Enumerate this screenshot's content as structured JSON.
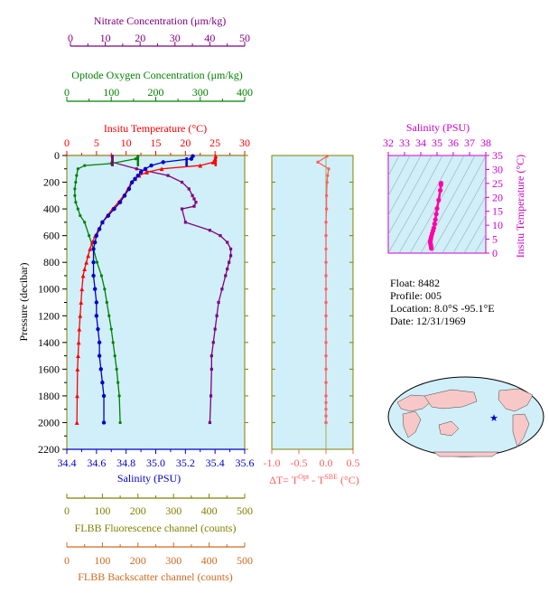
{
  "colors": {
    "nitrate": "#800080",
    "oxygen": "#008000",
    "temperature": "#ff0000",
    "salinity": "#0000cc",
    "pressure": "#000000",
    "fluorescence": "#808000",
    "backscatter": "#d2691e",
    "delta_t": "#ff6060",
    "ts_curve": "#ff00aa",
    "plot_bg": "#d0eff8"
  },
  "axes": {
    "nitrate": {
      "title": "Nitrate Concentration (μm/kg)",
      "ticks": [
        "0",
        "10",
        "20",
        "30",
        "40",
        "50"
      ],
      "range": [
        0,
        50
      ]
    },
    "oxygen": {
      "title": "Optode Oxygen Concentration (μm/kg)",
      "ticks": [
        "0",
        "100",
        "200",
        "300",
        "400"
      ],
      "range": [
        0,
        400
      ]
    },
    "temperature": {
      "title": "Insitu Temperature (°C)",
      "ticks": [
        "0",
        "5",
        "10",
        "15",
        "20",
        "25",
        "30"
      ],
      "range": [
        0,
        30
      ]
    },
    "pressure": {
      "title": "Pressure (decibar)",
      "ticks": [
        "0",
        "200",
        "400",
        "600",
        "800",
        "1000",
        "1200",
        "1400",
        "1600",
        "1800",
        "2000",
        "2200"
      ],
      "range": [
        0,
        2200
      ]
    },
    "salinity": {
      "title": "Salinity (PSU)",
      "ticks": [
        "34.4",
        "34.6",
        "34.8",
        "35.0",
        "35.2",
        "35.4",
        "35.6"
      ],
      "range": [
        34.4,
        35.6
      ]
    },
    "fluorescence": {
      "title": "FLBB Fluorescence channel (counts)",
      "ticks": [
        "0",
        "100",
        "200",
        "300",
        "400",
        "500"
      ],
      "range": [
        0,
        500
      ]
    },
    "backscatter": {
      "title": "FLBB Backscatter channel (counts)",
      "ticks": [
        "0",
        "100",
        "200",
        "300",
        "400",
        "500"
      ],
      "range": [
        0,
        500
      ]
    },
    "delta_t": {
      "title_prefix": "ΔT= T",
      "sup1": "Opt",
      "mid": " - T",
      "sup2": "SBE",
      "suffix": " (°C)",
      "ticks": [
        "-1.0",
        "-0.5",
        "0.0",
        "0.5"
      ],
      "range": [
        -1.0,
        0.5
      ]
    },
    "ts_salinity": {
      "title": "Salinity (PSU)",
      "ticks": [
        "32",
        "33",
        "34",
        "35",
        "36",
        "37",
        "38"
      ],
      "range": [
        32,
        38
      ]
    },
    "ts_temperature": {
      "title": "Insitu Temperature (°C)",
      "ticks": [
        "0",
        "5",
        "10",
        "15",
        "20",
        "25",
        "30",
        "35"
      ],
      "range": [
        0,
        35
      ]
    }
  },
  "info": {
    "float": "Float:  8482",
    "profile": "Profile:  005",
    "location": "Location:  8.0°S  -95.1°E",
    "date": "Date:  12/31/1969"
  },
  "chart_data": [
    {
      "type": "line",
      "title": "",
      "ylabel": "Pressure (decibar)",
      "ylim": [
        2200,
        0
      ],
      "series": [
        {
          "name": "Insitu Temperature (°C)",
          "color": "#ff0000",
          "x": [
            25.1,
            25.0,
            24.7,
            22.5,
            16.0,
            13.5,
            12.2,
            11.5,
            10.9,
            10.3,
            9.6,
            8.7,
            7.7,
            6.8,
            6.0,
            5.4,
            4.8,
            4.3,
            3.9,
            3.6,
            3.3,
            3.0,
            2.75,
            2.55,
            2.4,
            2.25,
            2.1,
            2.0,
            1.9,
            1.8,
            1.75,
            1.7
          ],
          "y": [
            5,
            25,
            50,
            75,
            100,
            125,
            150,
            175,
            200,
            250,
            300,
            350,
            400,
            450,
            500,
            550,
            600,
            650,
            700,
            750,
            800,
            850,
            900,
            1000,
            1100,
            1200,
            1300,
            1400,
            1500,
            1600,
            1800,
            2000
          ]
        },
        {
          "name": "Salinity (PSU)",
          "color": "#0000cc",
          "x": [
            35.25,
            35.24,
            35.05,
            34.97,
            34.93,
            34.9,
            34.88,
            34.86,
            34.84,
            34.82,
            34.79,
            34.76,
            34.72,
            34.68,
            34.64,
            34.62,
            34.6,
            34.59,
            34.58,
            34.58,
            34.58,
            34.59,
            34.6,
            34.6,
            34.61,
            34.62,
            34.62,
            34.63,
            34.64,
            34.65,
            34.65
          ],
          "y": [
            5,
            25,
            50,
            75,
            100,
            125,
            150,
            175,
            200,
            250,
            300,
            350,
            400,
            450,
            500,
            550,
            600,
            650,
            700,
            800,
            900,
            1000,
            1100,
            1200,
            1300,
            1400,
            1500,
            1600,
            1700,
            1800,
            2000
          ]
        },
        {
          "name": "Optode Oxygen Concentration (μm/kg)",
          "color": "#008000",
          "x": [
            160,
            155,
            100,
            40,
            25,
            22,
            20,
            18,
            18,
            20,
            25,
            30,
            40,
            50,
            60,
            68,
            78,
            85,
            90,
            95,
            100,
            104,
            108,
            112,
            115,
            118,
            120
          ],
          "y": [
            5,
            25,
            60,
            75,
            100,
            150,
            200,
            250,
            300,
            350,
            400,
            450,
            500,
            600,
            700,
            800,
            900,
            1000,
            1100,
            1200,
            1300,
            1400,
            1500,
            1600,
            1700,
            1800,
            2000
          ]
        },
        {
          "name": "Nitrate Concentration (μm/kg)",
          "color": "#800080",
          "x": [
            12,
            12,
            19,
            28,
            32,
            34,
            35,
            35.5,
            36,
            35.5,
            32,
            33,
            40,
            43,
            45,
            46,
            46,
            45.5,
            45,
            44.5,
            43.5,
            42.5,
            42,
            41.5,
            41,
            40.5,
            40.5,
            40.3,
            40
          ],
          "y": [
            5,
            50,
            100,
            150,
            200,
            250,
            300,
            325,
            350,
            380,
            400,
            500,
            560,
            600,
            650,
            700,
            750,
            800,
            850,
            900,
            1000,
            1100,
            1200,
            1300,
            1400,
            1500,
            1600,
            1800,
            2000
          ]
        },
        {
          "name": "ΔT= TOpt - TSBE (°C)",
          "color": "#ff6060",
          "x": [
            0.02,
            -0.15,
            0.05,
            0.03,
            0.02,
            0.01,
            0.01,
            0.0,
            0.0,
            0.0,
            0.0,
            0.0,
            0.0,
            0.0,
            0.0,
            0.0,
            0.0,
            0.0,
            0.0,
            0.0,
            0.0,
            0.0,
            0.0,
            0.0,
            0.0,
            0.0
          ],
          "y": [
            5,
            50,
            100,
            150,
            200,
            300,
            400,
            500,
            600,
            700,
            800,
            900,
            1000,
            1100,
            1200,
            1300,
            1400,
            1500,
            1600,
            1700,
            1800,
            1850,
            1900,
            1950,
            2000,
            2000
          ]
        }
      ]
    },
    {
      "type": "scatter",
      "title": "",
      "xlabel": "Salinity (PSU)",
      "ylabel": "Insitu Temperature (°C)",
      "xlim": [
        32,
        38
      ],
      "ylim": [
        0,
        35
      ],
      "series": [
        {
          "name": "T-S",
          "color": "#ff00aa",
          "x": [
            35.25,
            35.24,
            35.2,
            35.1,
            35.0,
            34.95,
            34.9,
            34.85,
            34.8,
            34.75,
            34.7,
            34.65,
            34.62,
            34.6,
            34.58,
            34.6,
            34.62,
            34.64,
            34.65
          ],
          "y": [
            25.1,
            24.5,
            22.5,
            19.0,
            16.0,
            14.0,
            12.0,
            10.5,
            9.0,
            8.0,
            7.0,
            6.0,
            5.2,
            4.6,
            4.0,
            3.4,
            2.8,
            2.2,
            1.7
          ]
        }
      ]
    }
  ]
}
